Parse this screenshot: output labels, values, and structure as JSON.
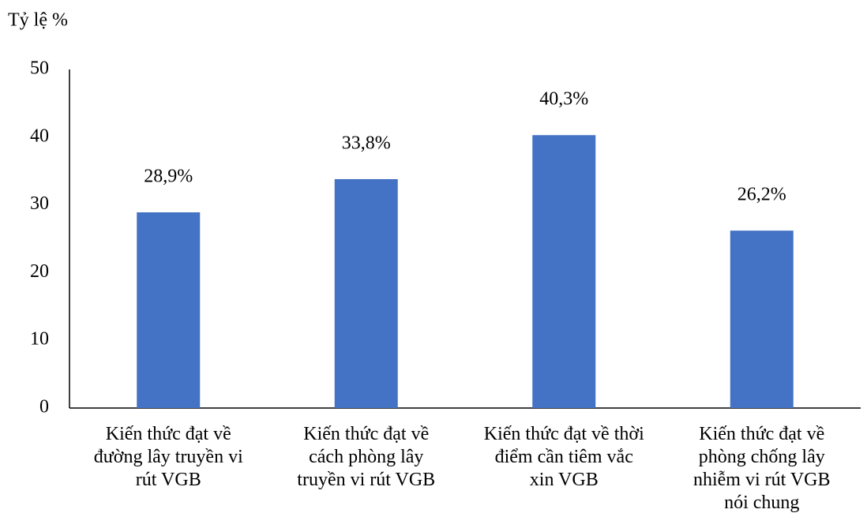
{
  "chart_data": {
    "type": "bar",
    "y_label": "Tỷ lệ %",
    "categories": [
      "Kiến thức đạt về\nđường lây truyền vi\nrút VGB",
      "Kiến thức đạt về\ncách phòng lây\ntruyền vi rút VGB",
      "Kiến thức đạt về thời\nđiểm cần tiêm vắc\nxin VGB",
      "Kiến thức đạt về\nphòng chống lây\nnhiễm vi rút VGB\nnói chung"
    ],
    "values": [
      28.9,
      33.8,
      40.3,
      26.2
    ],
    "value_labels": [
      "28,9%",
      "33,8%",
      "40,3%",
      "26,2%"
    ],
    "color": "#4472c4",
    "ylim": [
      0,
      50
    ],
    "yticks": [
      0,
      10,
      20,
      30,
      40,
      50
    ],
    "grid": false
  }
}
